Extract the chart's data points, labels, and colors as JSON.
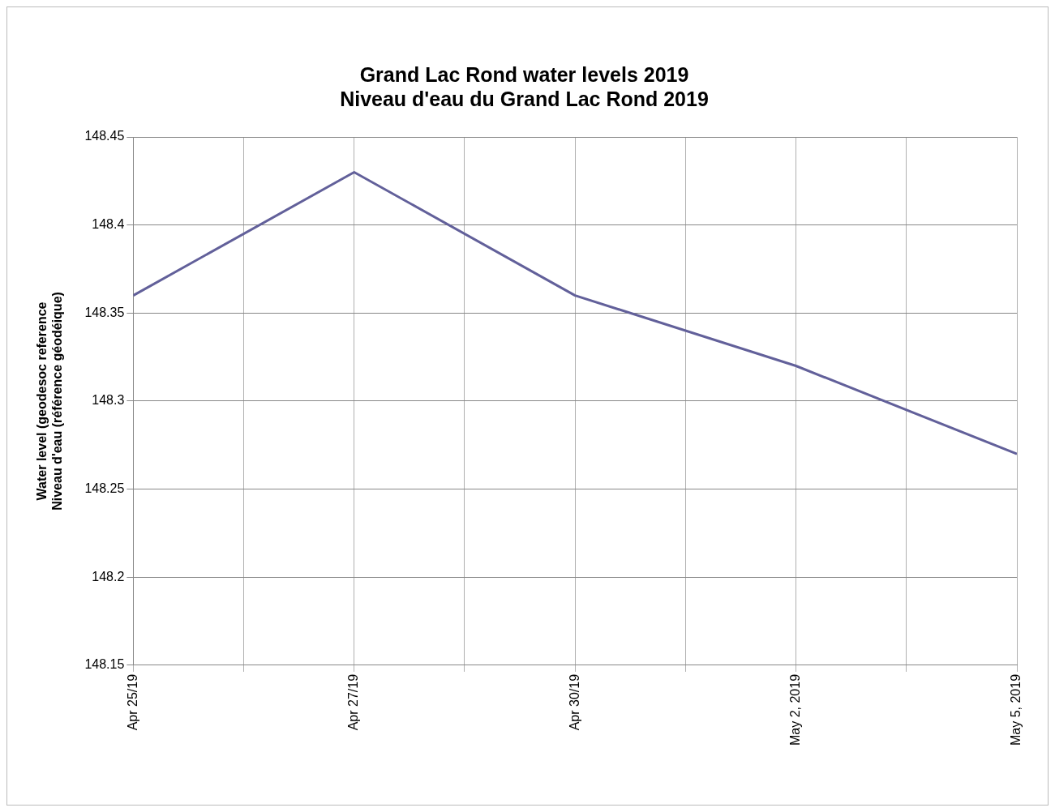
{
  "chart_data": {
    "type": "line",
    "title": "Grand Lac Rond water levels 2019\nNiveau d'eau du Grand Lac Rond 2019",
    "ylabel": "Water level (geodesoc reference\nNiveau d'eau (référence géodéique)",
    "categories": [
      "Apr 25/19",
      "Apr 27/19",
      "Apr 30/19",
      "May 2, 2019",
      "May 5, 2019"
    ],
    "series": [
      {
        "color": "#62609a",
        "values": [
          148.36,
          148.43,
          148.36,
          148.32,
          148.27
        ]
      }
    ],
    "ylim": [
      148.15,
      148.45
    ],
    "yticks": [
      148.15,
      148.2,
      148.25,
      148.3,
      148.35,
      148.4,
      148.45
    ],
    "grid": true,
    "legend": false,
    "marker": "none",
    "line_style": "solid"
  }
}
